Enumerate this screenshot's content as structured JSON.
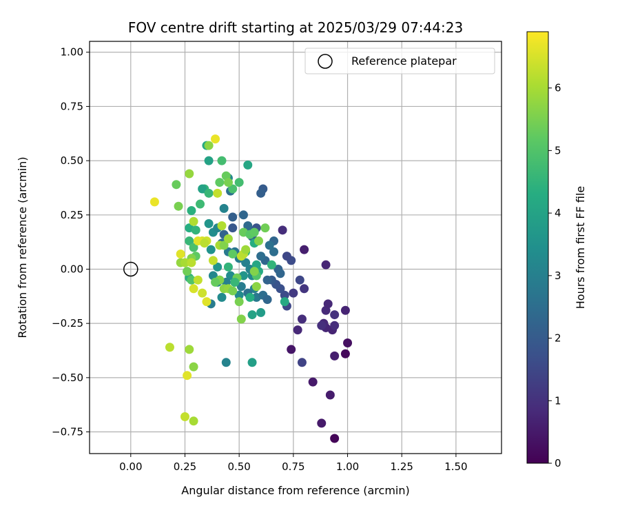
{
  "chart_data": {
    "type": "scatter",
    "title": "FOV centre drift starting at 2025/03/29 07:44:23",
    "xlabel": "Angular distance from reference (arcmin)",
    "ylabel": "Rotation from reference (arcmin)",
    "xlim": [
      -0.19,
      1.71
    ],
    "ylim": [
      -0.85,
      1.05
    ],
    "xticks": [
      0.0,
      0.25,
      0.5,
      0.75,
      1.0,
      1.25,
      1.5
    ],
    "xtick_labels": [
      "0.00",
      "0.25",
      "0.50",
      "0.75",
      "1.00",
      "1.25",
      "1.50"
    ],
    "yticks": [
      -0.75,
      -0.5,
      -0.25,
      0.0,
      0.25,
      0.5,
      0.75,
      1.0
    ],
    "ytick_labels": [
      "−0.75",
      "−0.50",
      "−0.25",
      "0.00",
      "0.25",
      "0.50",
      "0.75",
      "1.00"
    ],
    "grid": true,
    "legend": {
      "position": "top-right",
      "entries": [
        "Reference platepar"
      ]
    },
    "reference_point": {
      "x": 0.0,
      "y": 0.0
    },
    "colorbar": {
      "label": "Hours from first FF file",
      "range": [
        0,
        6.9
      ],
      "ticks": [
        0,
        1,
        2,
        3,
        4,
        5,
        6
      ],
      "tick_labels": [
        "0",
        "1",
        "2",
        "3",
        "4",
        "5",
        "6"
      ],
      "colormap": "viridis"
    },
    "points": [
      {
        "x": 0.94,
        "y": -0.78,
        "h": 0.1
      },
      {
        "x": 0.99,
        "y": -0.39,
        "h": 0.15
      },
      {
        "x": 1.0,
        "y": -0.34,
        "h": 0.3
      },
      {
        "x": 0.88,
        "y": -0.71,
        "h": 0.5
      },
      {
        "x": 0.92,
        "y": -0.58,
        "h": 0.55
      },
      {
        "x": 0.84,
        "y": -0.52,
        "h": 0.5
      },
      {
        "x": 0.74,
        "y": -0.37,
        "h": 0.4
      },
      {
        "x": 0.94,
        "y": -0.4,
        "h": 0.6
      },
      {
        "x": 0.93,
        "y": -0.28,
        "h": 0.7
      },
      {
        "x": 0.9,
        "y": -0.27,
        "h": 0.75
      },
      {
        "x": 0.94,
        "y": -0.26,
        "h": 0.9
      },
      {
        "x": 0.89,
        "y": -0.25,
        "h": 0.8
      },
      {
        "x": 0.88,
        "y": -0.26,
        "h": 0.95
      },
      {
        "x": 0.94,
        "y": -0.21,
        "h": 1.0
      },
      {
        "x": 0.9,
        "y": -0.19,
        "h": 0.85
      },
      {
        "x": 0.91,
        "y": -0.16,
        "h": 0.8
      },
      {
        "x": 0.99,
        "y": -0.19,
        "h": 0.7
      },
      {
        "x": 0.9,
        "y": 0.02,
        "h": 0.75
      },
      {
        "x": 0.8,
        "y": 0.09,
        "h": 0.6
      },
      {
        "x": 0.77,
        "y": -0.28,
        "h": 0.8
      },
      {
        "x": 0.79,
        "y": -0.23,
        "h": 0.9
      },
      {
        "x": 0.79,
        "y": -0.43,
        "h": 1.4
      },
      {
        "x": 0.8,
        "y": -0.09,
        "h": 1.1
      },
      {
        "x": 0.78,
        "y": -0.05,
        "h": 1.5
      },
      {
        "x": 0.75,
        "y": -0.11,
        "h": 1.2
      },
      {
        "x": 0.74,
        "y": 0.04,
        "h": 1.6
      },
      {
        "x": 0.72,
        "y": 0.06,
        "h": 1.5
      },
      {
        "x": 0.7,
        "y": 0.18,
        "h": 0.9
      },
      {
        "x": 0.72,
        "y": -0.17,
        "h": 1.5
      },
      {
        "x": 0.71,
        "y": -0.12,
        "h": 1.6
      },
      {
        "x": 0.69,
        "y": -0.09,
        "h": 1.7
      },
      {
        "x": 0.67,
        "y": -0.07,
        "h": 1.8
      },
      {
        "x": 0.65,
        "y": -0.05,
        "h": 2.0
      },
      {
        "x": 0.63,
        "y": -0.05,
        "h": 2.2
      },
      {
        "x": 0.68,
        "y": 0.0,
        "h": 2.2
      },
      {
        "x": 0.69,
        "y": -0.02,
        "h": 2.3
      },
      {
        "x": 0.66,
        "y": 0.08,
        "h": 2.5
      },
      {
        "x": 0.66,
        "y": 0.13,
        "h": 2.3
      },
      {
        "x": 0.64,
        "y": 0.11,
        "h": 2.6
      },
      {
        "x": 0.62,
        "y": 0.04,
        "h": 2.3
      },
      {
        "x": 0.6,
        "y": 0.06,
        "h": 2.5
      },
      {
        "x": 0.61,
        "y": 0.37,
        "h": 2.0
      },
      {
        "x": 0.6,
        "y": 0.35,
        "h": 2.1
      },
      {
        "x": 0.58,
        "y": 0.19,
        "h": 1.8
      },
      {
        "x": 0.55,
        "y": 0.18,
        "h": 1.9
      },
      {
        "x": 0.56,
        "y": 0.15,
        "h": 2.2
      },
      {
        "x": 0.54,
        "y": 0.2,
        "h": 2.4
      },
      {
        "x": 0.52,
        "y": 0.25,
        "h": 2.3
      },
      {
        "x": 0.47,
        "y": 0.24,
        "h": 2.1
      },
      {
        "x": 0.47,
        "y": 0.19,
        "h": 1.9
      },
      {
        "x": 0.46,
        "y": 0.36,
        "h": 2.6
      },
      {
        "x": 0.45,
        "y": 0.42,
        "h": 3.2
      },
      {
        "x": 0.43,
        "y": 0.28,
        "h": 3.1
      },
      {
        "x": 0.43,
        "y": 0.16,
        "h": 2.2
      },
      {
        "x": 0.42,
        "y": 0.12,
        "h": 2.5
      },
      {
        "x": 0.45,
        "y": 0.08,
        "h": 2.8
      },
      {
        "x": 0.48,
        "y": 0.08,
        "h": 2.7
      },
      {
        "x": 0.5,
        "y": 0.05,
        "h": 2.9
      },
      {
        "x": 0.53,
        "y": 0.03,
        "h": 3.0
      },
      {
        "x": 0.55,
        "y": 0.0,
        "h": 3.1
      },
      {
        "x": 0.56,
        "y": -0.03,
        "h": 3.2
      },
      {
        "x": 0.57,
        "y": -0.09,
        "h": 3.0
      },
      {
        "x": 0.58,
        "y": -0.13,
        "h": 2.8
      },
      {
        "x": 0.61,
        "y": -0.12,
        "h": 2.5
      },
      {
        "x": 0.63,
        "y": -0.14,
        "h": 2.3
      },
      {
        "x": 0.54,
        "y": -0.11,
        "h": 2.6
      },
      {
        "x": 0.51,
        "y": -0.08,
        "h": 2.9
      },
      {
        "x": 0.48,
        "y": -0.06,
        "h": 3.1
      },
      {
        "x": 0.46,
        "y": -0.03,
        "h": 3.3
      },
      {
        "x": 0.44,
        "y": -0.06,
        "h": 3.0
      },
      {
        "x": 0.41,
        "y": -0.05,
        "h": 3.4
      },
      {
        "x": 0.4,
        "y": 0.01,
        "h": 3.6
      },
      {
        "x": 0.38,
        "y": -0.03,
        "h": 3.2
      },
      {
        "x": 0.37,
        "y": 0.09,
        "h": 3.5
      },
      {
        "x": 0.36,
        "y": 0.21,
        "h": 3.6
      },
      {
        "x": 0.38,
        "y": 0.17,
        "h": 3.4
      },
      {
        "x": 0.4,
        "y": 0.19,
        "h": 3.2
      },
      {
        "x": 0.42,
        "y": -0.13,
        "h": 3.3
      },
      {
        "x": 0.44,
        "y": -0.43,
        "h": 3.1
      },
      {
        "x": 0.37,
        "y": -0.16,
        "h": 2.9
      },
      {
        "x": 0.4,
        "y": -0.06,
        "h": 3.0
      },
      {
        "x": 0.5,
        "y": -0.12,
        "h": 3.3
      },
      {
        "x": 0.52,
        "y": -0.03,
        "h": 3.6
      },
      {
        "x": 0.6,
        "y": -0.2,
        "h": 3.8
      },
      {
        "x": 0.56,
        "y": -0.21,
        "h": 4.0
      },
      {
        "x": 0.56,
        "y": -0.43,
        "h": 3.9
      },
      {
        "x": 0.59,
        "y": -0.01,
        "h": 4.2
      },
      {
        "x": 0.58,
        "y": 0.02,
        "h": 4.1
      },
      {
        "x": 0.57,
        "y": 0.12,
        "h": 4.3
      },
      {
        "x": 0.53,
        "y": 0.08,
        "h": 4.6
      },
      {
        "x": 0.5,
        "y": 0.4,
        "h": 4.8
      },
      {
        "x": 0.54,
        "y": 0.48,
        "h": 4.1
      },
      {
        "x": 0.44,
        "y": 0.43,
        "h": 5.3
      },
      {
        "x": 0.42,
        "y": 0.5,
        "h": 4.8
      },
      {
        "x": 0.41,
        "y": 0.4,
        "h": 5.2
      },
      {
        "x": 0.47,
        "y": 0.37,
        "h": 4.9
      },
      {
        "x": 0.45,
        "y": 0.4,
        "h": 5.5
      },
      {
        "x": 0.35,
        "y": 0.57,
        "h": 4.2
      },
      {
        "x": 0.36,
        "y": 0.5,
        "h": 4.0
      },
      {
        "x": 0.34,
        "y": 0.37,
        "h": 4.5
      },
      {
        "x": 0.33,
        "y": 0.37,
        "h": 4.0
      },
      {
        "x": 0.36,
        "y": 0.35,
        "h": 4.6
      },
      {
        "x": 0.32,
        "y": 0.3,
        "h": 4.7
      },
      {
        "x": 0.28,
        "y": 0.27,
        "h": 4.4
      },
      {
        "x": 0.27,
        "y": 0.19,
        "h": 4.3
      },
      {
        "x": 0.3,
        "y": 0.18,
        "h": 4.5
      },
      {
        "x": 0.27,
        "y": 0.13,
        "h": 4.6
      },
      {
        "x": 0.29,
        "y": 0.1,
        "h": 4.9
      },
      {
        "x": 0.3,
        "y": 0.06,
        "h": 5.2
      },
      {
        "x": 0.28,
        "y": 0.05,
        "h": 5.6
      },
      {
        "x": 0.27,
        "y": -0.04,
        "h": 4.4
      },
      {
        "x": 0.28,
        "y": -0.05,
        "h": 5.0
      },
      {
        "x": 0.26,
        "y": -0.01,
        "h": 5.4
      },
      {
        "x": 0.23,
        "y": 0.03,
        "h": 5.8
      },
      {
        "x": 0.25,
        "y": 0.03,
        "h": 6.0
      },
      {
        "x": 0.23,
        "y": 0.07,
        "h": 6.6
      },
      {
        "x": 0.28,
        "y": 0.03,
        "h": 6.2
      },
      {
        "x": 0.29,
        "y": 0.22,
        "h": 6.1
      },
      {
        "x": 0.22,
        "y": 0.29,
        "h": 5.5
      },
      {
        "x": 0.21,
        "y": 0.39,
        "h": 5.3
      },
      {
        "x": 0.27,
        "y": 0.44,
        "h": 5.8
      },
      {
        "x": 0.11,
        "y": 0.31,
        "h": 6.7
      },
      {
        "x": 0.39,
        "y": 0.6,
        "h": 6.7
      },
      {
        "x": 0.36,
        "y": 0.57,
        "h": 5.7
      },
      {
        "x": 0.4,
        "y": 0.35,
        "h": 6.3
      },
      {
        "x": 0.41,
        "y": 0.11,
        "h": 6.0
      },
      {
        "x": 0.42,
        "y": 0.2,
        "h": 6.1
      },
      {
        "x": 0.43,
        "y": 0.11,
        "h": 5.6
      },
      {
        "x": 0.45,
        "y": 0.14,
        "h": 5.9
      },
      {
        "x": 0.33,
        "y": 0.13,
        "h": 6.5
      },
      {
        "x": 0.35,
        "y": 0.13,
        "h": 6.4
      },
      {
        "x": 0.31,
        "y": 0.13,
        "h": 6.6
      },
      {
        "x": 0.34,
        "y": 0.12,
        "h": 6.2
      },
      {
        "x": 0.38,
        "y": 0.04,
        "h": 6.3
      },
      {
        "x": 0.41,
        "y": -0.05,
        "h": 5.6
      },
      {
        "x": 0.39,
        "y": -0.06,
        "h": 5.3
      },
      {
        "x": 0.43,
        "y": -0.09,
        "h": 5.7
      },
      {
        "x": 0.45,
        "y": -0.09,
        "h": 5.8
      },
      {
        "x": 0.47,
        "y": -0.1,
        "h": 5.5
      },
      {
        "x": 0.49,
        "y": -0.04,
        "h": 5.4
      },
      {
        "x": 0.5,
        "y": -0.15,
        "h": 5.5
      },
      {
        "x": 0.51,
        "y": 0.06,
        "h": 6.3
      },
      {
        "x": 0.52,
        "y": 0.07,
        "h": 6.2
      },
      {
        "x": 0.53,
        "y": 0.09,
        "h": 5.9
      },
      {
        "x": 0.52,
        "y": 0.17,
        "h": 5.3
      },
      {
        "x": 0.55,
        "y": 0.16,
        "h": 5.1
      },
      {
        "x": 0.57,
        "y": 0.17,
        "h": 5.2
      },
      {
        "x": 0.59,
        "y": 0.13,
        "h": 5.6
      },
      {
        "x": 0.62,
        "y": 0.19,
        "h": 5.4
      },
      {
        "x": 0.58,
        "y": -0.03,
        "h": 5.0
      },
      {
        "x": 0.57,
        "y": -0.01,
        "h": 5.6
      },
      {
        "x": 0.58,
        "y": -0.08,
        "h": 5.7
      },
      {
        "x": 0.55,
        "y": -0.13,
        "h": 4.3
      },
      {
        "x": 0.51,
        "y": -0.23,
        "h": 5.6
      },
      {
        "x": 0.47,
        "y": 0.07,
        "h": 5.2
      },
      {
        "x": 0.45,
        "y": 0.01,
        "h": 4.5
      },
      {
        "x": 0.48,
        "y": -0.06,
        "h": 4.6
      },
      {
        "x": 0.65,
        "y": 0.02,
        "h": 4.5
      },
      {
        "x": 0.71,
        "y": -0.15,
        "h": 4.2
      },
      {
        "x": 0.33,
        "y": -0.11,
        "h": 6.4
      },
      {
        "x": 0.29,
        "y": -0.09,
        "h": 6.5
      },
      {
        "x": 0.35,
        "y": -0.15,
        "h": 6.6
      },
      {
        "x": 0.31,
        "y": -0.05,
        "h": 6.3
      },
      {
        "x": 0.18,
        "y": -0.36,
        "h": 6.2
      },
      {
        "x": 0.27,
        "y": -0.37,
        "h": 5.9
      },
      {
        "x": 0.29,
        "y": -0.45,
        "h": 5.7
      },
      {
        "x": 0.26,
        "y": -0.49,
        "h": 6.6
      },
      {
        "x": 0.25,
        "y": -0.68,
        "h": 6.3
      },
      {
        "x": 0.29,
        "y": -0.7,
        "h": 6.0
      }
    ]
  }
}
